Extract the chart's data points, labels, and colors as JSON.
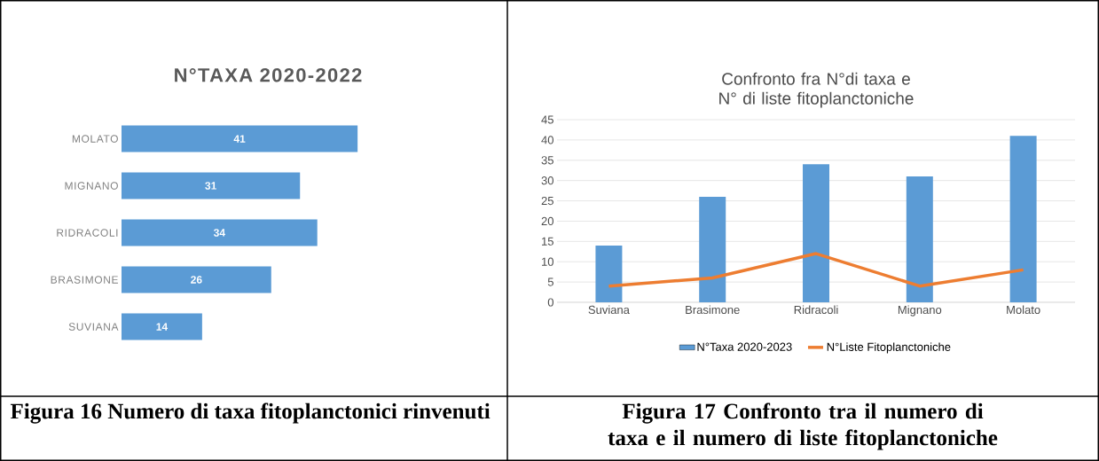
{
  "chart_data": [
    {
      "type": "bar",
      "orientation": "horizontal",
      "title": "N°TAXA  2020-2022",
      "categories": [
        "MOLATO",
        "MIGNANO",
        "RIDRACOLI",
        "BRASIMONE",
        "SUVIANA"
      ],
      "values": [
        41,
        31,
        34,
        26,
        14
      ],
      "color": "#5b9bd5",
      "data_labels": true,
      "annotations": [
        "Figura 16 Numero di taxa fitoplanctonici rinvenuti"
      ]
    },
    {
      "type": "bar",
      "title": "Confronto fra N°di taxa e N° di liste fitoplanctoniche",
      "categories": [
        "Suviana",
        "Brasimone",
        "Ridracoli",
        "Mignano",
        "Molato"
      ],
      "series": [
        {
          "name": "N°Taxa 2020-2023",
          "color": "#5b9bd5",
          "values": [
            14,
            26,
            34,
            31,
            41
          ]
        },
        {
          "name": "N°Liste Fitoplanctoniche",
          "type": "line",
          "color": "#ed7d31",
          "values": [
            4,
            6,
            12,
            4,
            8
          ]
        }
      ],
      "ylim": [
        0,
        45
      ],
      "yticks": [
        0,
        5,
        10,
        15,
        20,
        25,
        30,
        35,
        40,
        45
      ],
      "grid": "y",
      "legend": "bottom",
      "annotations": [
        "Figura 17 Confronto tra il numero di taxa e il numero di liste fitoplanctoniche"
      ]
    }
  ]
}
